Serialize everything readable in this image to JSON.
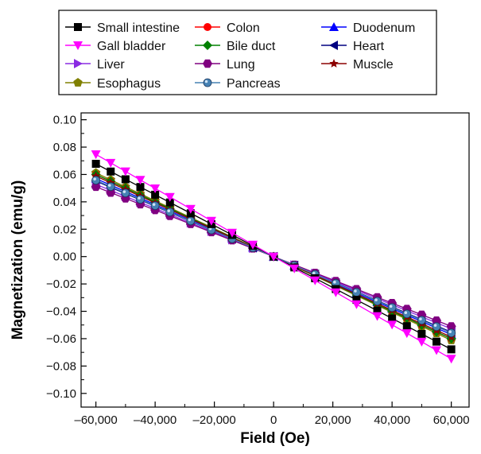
{
  "chart_data": {
    "type": "line",
    "title": "",
    "xlabel": "Field (Oe)",
    "ylabel": "Magnetization (emu/g)",
    "xlim": [
      -65000,
      66000
    ],
    "ylim": [
      -0.11,
      0.105
    ],
    "xticks": [
      -60000,
      -40000,
      -20000,
      0,
      20000,
      40000,
      60000
    ],
    "xtick_labels": [
      "–60,000",
      "–40,000",
      "–20,000",
      "0",
      "20,000",
      "40,000",
      "60,000"
    ],
    "yticks": [
      -0.1,
      -0.08,
      -0.06,
      -0.04,
      -0.02,
      0.0,
      0.02,
      0.04,
      0.06,
      0.08,
      0.1
    ],
    "ytick_labels": [
      "−0.10",
      "−0.08",
      "−0.06",
      "−0.04",
      "−0.02",
      "0.00",
      "0.02",
      "0.04",
      "0.06",
      "0.08",
      "0.10"
    ],
    "grid": false,
    "legend_position": "top",
    "x": [
      -60000,
      -55000,
      -50000,
      -45000,
      -40000,
      -35000,
      -28000,
      -21000,
      -14000,
      -7000,
      0,
      7000,
      14000,
      21000,
      28000,
      35000,
      40000,
      45000,
      50000,
      55000,
      60000
    ],
    "series": [
      {
        "name": "Small intestine",
        "color": "#000000",
        "marker": "square",
        "slope": -1.13e-06
      },
      {
        "name": "Colon",
        "color": "#ff0000",
        "marker": "circle",
        "slope": -1e-06
      },
      {
        "name": "Duodenum",
        "color": "#0000ff",
        "marker": "triangle-up",
        "slope": -9.5e-07
      },
      {
        "name": "Gall bladder",
        "color": "#ff00ff",
        "marker": "triangle-down",
        "slope": -1.245e-06
      },
      {
        "name": "Bile duct",
        "color": "#008000",
        "marker": "diamond",
        "slope": -1e-06
      },
      {
        "name": "Heart",
        "color": "#000080",
        "marker": "triangle-left",
        "slope": -9.2e-07
      },
      {
        "name": "Liver",
        "color": "#8a2be2",
        "marker": "triangle-right",
        "slope": -8.8e-07
      },
      {
        "name": "Lung",
        "color": "#800080",
        "marker": "hexagon",
        "slope": -8.5e-07
      },
      {
        "name": "Muscle",
        "color": "#8b0000",
        "marker": "star",
        "slope": -9.8e-07
      },
      {
        "name": "Esophagus",
        "color": "#808000",
        "marker": "pentagon",
        "slope": -1.02e-06
      },
      {
        "name": "Pancreas",
        "color": "#4682b4",
        "marker": "sphere",
        "slope": -9.3e-07
      }
    ]
  }
}
